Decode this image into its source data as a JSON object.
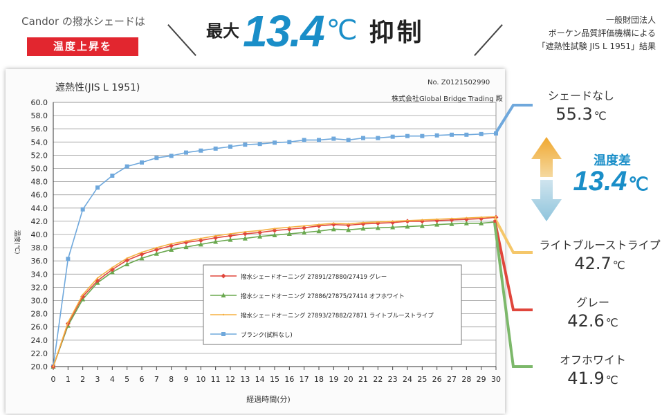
{
  "header": {
    "left_line": "Candor の撥水シェードは",
    "badge": "温度上昇を",
    "headline_prefix": "最大",
    "headline_value": "13.4",
    "headline_unit": "℃",
    "headline_suffix": "抑制",
    "right_lines": [
      "一般財団法人",
      "ボーケン品質評価機構による",
      "「遮熱性試験 JIS L 1951」結果"
    ]
  },
  "colors": {
    "accent_blue": "#1a8ec8",
    "badge_red": "#e2262f",
    "series_gray": "#e0463c",
    "series_offwhite": "#6aa84f",
    "series_lightblue": "#f5b041",
    "series_blank": "#6fa8dc"
  },
  "chart_data": {
    "type": "line",
    "title": "遮熱性(JIS L 1951)",
    "doc_no": "No. Z0121502990",
    "company": "株式会社Global Bridge Trading 殿",
    "xlabel": "経過時間(分)",
    "ylabel": "温度(℃)",
    "xlim": [
      0,
      30
    ],
    "ylim": [
      20,
      60
    ],
    "x": [
      0,
      1,
      2,
      3,
      4,
      5,
      6,
      7,
      8,
      9,
      10,
      11,
      12,
      13,
      14,
      15,
      16,
      17,
      18,
      19,
      20,
      21,
      22,
      23,
      24,
      25,
      26,
      27,
      28,
      29,
      30
    ],
    "x_ticks": [
      "0",
      "1",
      "2",
      "3",
      "4",
      "5",
      "6",
      "7",
      "8",
      "9",
      "10",
      "11",
      "12",
      "13",
      "14",
      "15",
      "16",
      "17",
      "18",
      "19",
      "20",
      "21",
      "22",
      "23",
      "24",
      "25",
      "26",
      "27",
      "28",
      "29",
      "30"
    ],
    "y_ticks": [
      "20.0",
      "22.0",
      "24.0",
      "26.0",
      "28.0",
      "30.0",
      "32.0",
      "34.0",
      "36.0",
      "38.0",
      "40.0",
      "42.0",
      "44.0",
      "46.0",
      "48.0",
      "50.0",
      "52.0",
      "54.0",
      "56.0",
      "58.0",
      "60.0"
    ],
    "grid": true,
    "legend_position": "lower-right",
    "series": [
      {
        "name": "撥水シェードオーニング 27891/27880/27419 グレー",
        "color": "#e0463c",
        "marker": "diamond",
        "values": [
          20.0,
          26.5,
          30.6,
          33.0,
          34.7,
          36.1,
          37.0,
          37.7,
          38.3,
          38.8,
          39.1,
          39.5,
          39.8,
          40.1,
          40.3,
          40.6,
          40.8,
          41.0,
          41.3,
          41.5,
          41.4,
          41.6,
          41.7,
          41.8,
          42.0,
          42.0,
          42.1,
          42.2,
          42.3,
          42.4,
          42.6
        ]
      },
      {
        "name": "撥水シェードオーニング 27886/27875/27414 オフホワイト",
        "color": "#6aa84f",
        "marker": "triangle",
        "values": [
          20.0,
          26.2,
          30.2,
          32.7,
          34.3,
          35.5,
          36.4,
          37.1,
          37.7,
          38.1,
          38.5,
          38.9,
          39.2,
          39.4,
          39.7,
          39.9,
          40.1,
          40.3,
          40.5,
          40.8,
          40.7,
          40.9,
          41.0,
          41.1,
          41.2,
          41.3,
          41.5,
          41.6,
          41.7,
          41.7,
          41.9
        ]
      },
      {
        "name": "撥水シェードオーニング 27893/27882/27871 ライトブルーストライプ",
        "color": "#f5b041",
        "marker": "line",
        "values": [
          20.0,
          26.7,
          30.9,
          33.4,
          35.0,
          36.4,
          37.3,
          38.0,
          38.6,
          39.0,
          39.4,
          39.8,
          40.1,
          40.4,
          40.6,
          40.9,
          41.1,
          41.3,
          41.5,
          41.7,
          41.6,
          41.8,
          41.9,
          42.0,
          42.1,
          42.2,
          42.3,
          42.4,
          42.5,
          42.6,
          42.7
        ]
      },
      {
        "name": "ブランク(試料なし)",
        "color": "#6fa8dc",
        "marker": "square",
        "values": [
          20.0,
          36.3,
          43.8,
          47.1,
          48.9,
          50.3,
          50.9,
          51.6,
          51.9,
          52.4,
          52.7,
          53.0,
          53.3,
          53.6,
          53.7,
          53.9,
          54.0,
          54.3,
          54.3,
          54.5,
          54.3,
          54.6,
          54.6,
          54.8,
          54.9,
          54.9,
          55.0,
          55.1,
          55.1,
          55.2,
          55.3
        ]
      }
    ]
  },
  "callouts": {
    "none": {
      "name": "シェードなし",
      "value": "55.3",
      "unit": "℃"
    },
    "diff": {
      "name": "温度差",
      "value": "13.4",
      "unit": "℃"
    },
    "lightblue": {
      "name": "ライトブルーストライプ",
      "value": "42.7",
      "unit": "℃"
    },
    "gray": {
      "name": "グレー",
      "value": "42.6",
      "unit": "℃"
    },
    "offwhite": {
      "name": "オフホワイト",
      "value": "41.9",
      "unit": "℃"
    }
  }
}
